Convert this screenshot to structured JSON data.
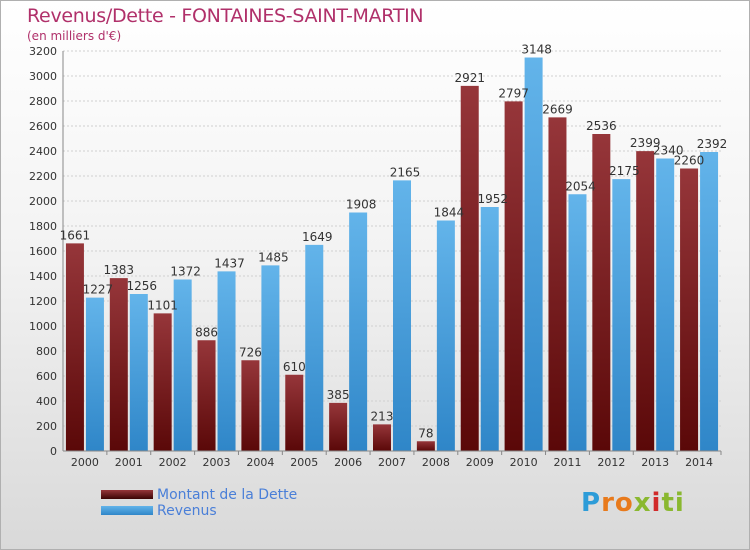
{
  "colors": {
    "debt_dark": "#5a0808",
    "debt_light": "#96363a",
    "revenue_dark": "#2f86c8",
    "revenue_light": "#63b4ea",
    "title": "#b0306a",
    "legend_text": "#4a7fd8"
  },
  "chart_data": {
    "type": "bar",
    "title": "Revenus/Dette - FONTAINES-SAINT-MARTIN",
    "subtitle": "(en milliers d'€)",
    "categories": [
      "2000",
      "2001",
      "2002",
      "2003",
      "2004",
      "2005",
      "2006",
      "2007",
      "2008",
      "2009",
      "2010",
      "2011",
      "2012",
      "2013",
      "2014"
    ],
    "series": [
      {
        "name": "Montant de la Dette",
        "values": [
          1661,
          1383,
          1101,
          886,
          726,
          610,
          385,
          213,
          78,
          2921,
          2797,
          2669,
          2536,
          2399,
          2260
        ]
      },
      {
        "name": "Revenus",
        "values": [
          1227,
          1256,
          1372,
          1437,
          1485,
          1649,
          1908,
          2165,
          1844,
          1952,
          3148,
          2054,
          2175,
          2340,
          2392
        ]
      }
    ],
    "ylim": [
      0,
      3200
    ],
    "yticks": [
      0,
      200,
      400,
      600,
      800,
      1000,
      1200,
      1400,
      1600,
      1800,
      2000,
      2200,
      2400,
      2600,
      2800,
      3000,
      3200
    ],
    "legend_position": "bottom-left"
  },
  "logo": {
    "letters": [
      "P",
      "r",
      "o",
      "x",
      "i",
      "t",
      "i"
    ],
    "colors": [
      "#2d9cd8",
      "#e87a1c",
      "#e87a1c",
      "#8ab830",
      "#d12a2a",
      "#8ab830",
      "#8ab830"
    ]
  }
}
